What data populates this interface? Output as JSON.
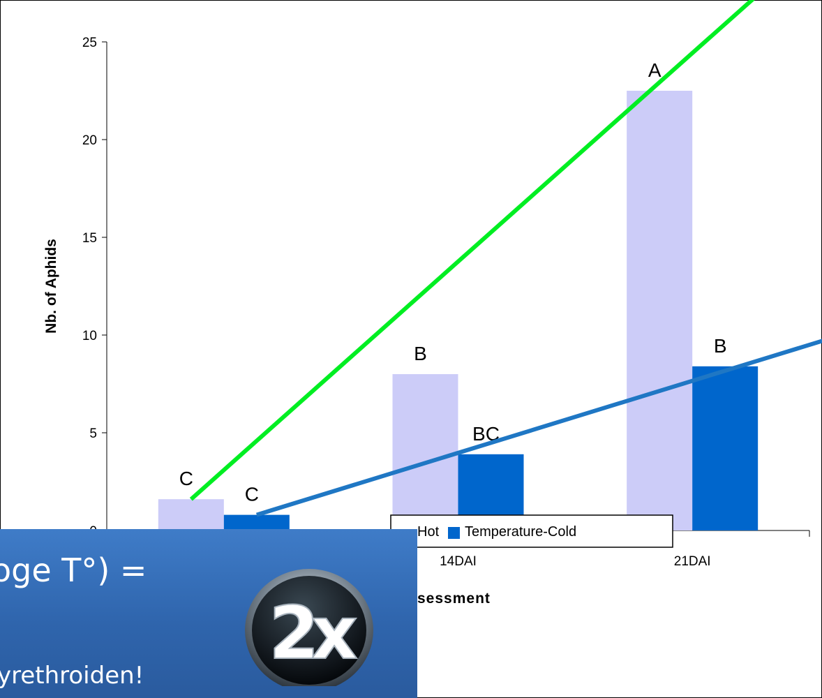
{
  "chart_data": {
    "type": "bar",
    "categories": [
      "",
      "14DAI",
      "21DAI"
    ],
    "series": [
      {
        "name": "Hot",
        "values": [
          1.6,
          8.0,
          22.5
        ],
        "color": "#ccccf8"
      },
      {
        "name": "Temperature-Cold",
        "values": [
          0.8,
          3.9,
          8.4
        ],
        "color": "#0066cc"
      }
    ],
    "significance_letters": [
      [
        "C",
        "B",
        "A"
      ],
      [
        "C",
        "BC",
        "B"
      ]
    ],
    "trend_lines": [
      {
        "color": "#00ee22",
        "from": [
          0,
          1.6
        ],
        "to": [
          2.4,
          27.2
        ]
      },
      {
        "color": "#1f77c4",
        "from": [
          0,
          0.8
        ],
        "to": [
          2.55,
          10.2
        ]
      }
    ],
    "ylabel": "Nb. of Aphids",
    "xlabel": "sessment",
    "ylim": [
      0,
      25
    ],
    "yticks": [
      "0",
      "5",
      "10",
      "15",
      "20",
      "25"
    ],
    "grid": false,
    "legend_position": "bottom-right"
  },
  "overlay": {
    "formula_text": "oge T°) =",
    "badge_text": "2x",
    "subtitle_text": "yrethroiden!"
  }
}
